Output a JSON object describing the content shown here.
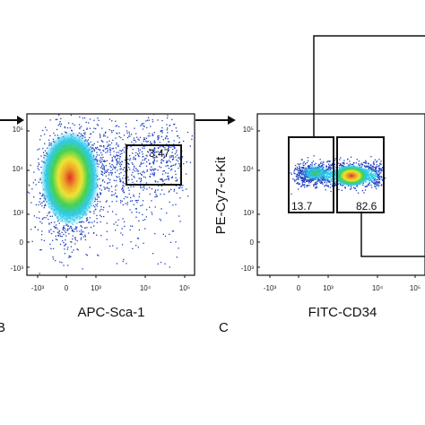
{
  "chart_data": [
    {
      "type": "scatter",
      "panel": "B",
      "xlabel": "APC-Sca-1",
      "ylabel": "",
      "x_ticks": [
        "-10³",
        "0",
        "10³",
        "10⁴",
        "10⁵"
      ],
      "y_ticks": [
        "10⁵",
        "10⁴",
        "10³",
        "0",
        "-10³"
      ],
      "gates": [
        {
          "label": "3.47",
          "x_range": [
            "10^3.7",
            "10^5"
          ],
          "y_range": [
            "10^3.6",
            "10^4.4"
          ]
        }
      ],
      "populations": [
        {
          "name": "",
          "x_center": "~0",
          "y_center": "~10^3.8",
          "density": "high"
        }
      ]
    },
    {
      "type": "scatter",
      "panel": "C",
      "xlabel": "FITC-CD34",
      "ylabel": "PE-Cy7-c-Kit",
      "x_ticks": [
        "-10³",
        "0",
        "10³",
        "10⁴",
        "10⁵"
      ],
      "y_ticks": [
        "10⁵",
        "10⁴",
        "10³",
        "0",
        "-10³"
      ],
      "gates": [
        {
          "label": "13.7",
          "x_range": [
            "-10^2.5",
            "10^3.2"
          ],
          "y_range": [
            "10^2.9",
            "10^4.5"
          ]
        },
        {
          "label": "82.6",
          "x_range": [
            "10^3.2",
            "10^4.8"
          ],
          "y_range": [
            "10^2.9",
            "10^4.5"
          ]
        }
      ]
    }
  ],
  "panels": {
    "b": {
      "letter": "B",
      "xlabel": "APC-Sca-1",
      "gate_label": "3.47"
    },
    "c": {
      "letter": "C",
      "xlabel": "FITC-CD34",
      "ylabel": "PE-Cy7-c-Kit",
      "gate_left_label": "13.7",
      "gate_right_label": "82.6"
    }
  },
  "ticks": {
    "x": [
      "-10³",
      "0",
      "10³",
      "10⁴",
      "10⁵"
    ],
    "y": [
      "10⁵",
      "10⁴",
      "10³",
      "0",
      "-10³"
    ]
  },
  "colors": {
    "density_low": "#1f3fbf",
    "density_mid": "#29c8e8",
    "density_midhigh": "#3fd04a",
    "density_high": "#f2e52a",
    "density_peak": "#e8261c",
    "frame": "#111111"
  }
}
